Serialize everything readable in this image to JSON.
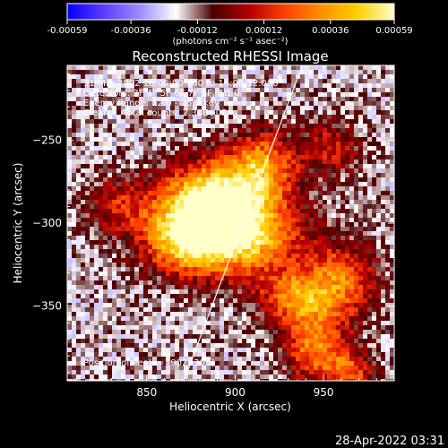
{
  "colorbar": {
    "tick_labels": [
      "-0.00059",
      "-0.00036",
      "-0.00012",
      "0.00012",
      "0.00036",
      "0.00059"
    ],
    "tick_values": [
      -0.00059,
      -0.00036,
      -0.00012,
      0.00012,
      0.00036,
      0.00059
    ],
    "range": [
      -0.00059,
      0.00059
    ],
    "units_label": "(photons cm⁻² s⁻¹ asec⁻²)",
    "colors": [
      "#0000ff",
      "#5a3cff",
      "#9a8cff",
      "#ffffff",
      "#4a0000",
      "#b00000",
      "#ff4000",
      "#ff9000",
      "#ffd000",
      "#ffffc8"
    ]
  },
  "chart_data": {
    "type": "heatmap",
    "title": "Reconstructed RHESSI Image",
    "xlabel": "Heliocentric X (arcsec)",
    "ylabel": "Heliocentric Y (arcsec)",
    "xlim": [
      805,
      990
    ],
    "ylim": [
      -395,
      -205
    ],
    "x_ticks": [
      850,
      900,
      950
    ],
    "y_ticks": [
      -250,
      -300,
      -350
    ],
    "x_tick_labels": [
      "850",
      "900",
      "950"
    ],
    "y_tick_labels": [
      "−250",
      "−300",
      "−350"
    ],
    "annotations": [
      "31-Mar-2002 16:06:00.000 to 16:08:32.000",
      "Detectors: 3F 4F 5F 6F 7F 8F, Att 0",
      "Energy Range: 12.0 - 25.0 keV",
      "Clean     Total counts: 2.38E+03"
    ],
    "peak_label": "Position of Peak = [902,-305]",
    "peak": [
      902,
      -305
    ],
    "limb_line": [
      [
        871,
        -395
      ],
      [
        938,
        -205
      ]
    ],
    "sources": [
      {
        "x": 902,
        "y": -305,
        "peak": 0.00059,
        "sx": 22,
        "sy": 18
      },
      {
        "x": 885,
        "y": -285,
        "peak": 0.00045,
        "sx": 18,
        "sy": 16
      },
      {
        "x": 870,
        "y": -310,
        "peak": 0.00038,
        "sx": 16,
        "sy": 14
      },
      {
        "x": 915,
        "y": -265,
        "peak": 0.00032,
        "sx": 14,
        "sy": 14
      },
      {
        "x": 935,
        "y": -345,
        "peak": 0.0003,
        "sx": 14,
        "sy": 12
      },
      {
        "x": 960,
        "y": -335,
        "peak": 0.00026,
        "sx": 14,
        "sy": 16
      },
      {
        "x": 945,
        "y": -375,
        "peak": 0.00028,
        "sx": 12,
        "sy": 14
      },
      {
        "x": 965,
        "y": -390,
        "peak": 0.0002,
        "sx": 10,
        "sy": 10
      },
      {
        "x": 835,
        "y": -290,
        "peak": 0.00012,
        "sx": 14,
        "sy": 12
      },
      {
        "x": 955,
        "y": -255,
        "peak": 0.0001,
        "sx": 12,
        "sy": 12
      }
    ],
    "background": -0.00016
  },
  "footer": {
    "timestamp": "28-Apr-2022 03:31"
  }
}
